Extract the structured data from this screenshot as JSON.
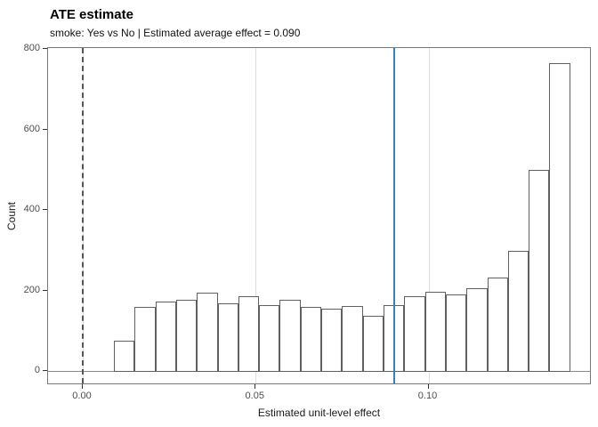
{
  "title": "ATE estimate",
  "subtitle": "smoke: Yes vs No | Estimated average effect = 0.090",
  "chart_data": {
    "type": "bar",
    "subtype": "histogram",
    "title": "ATE estimate",
    "subtitle": "smoke: Yes vs No | Estimated average effect = 0.090",
    "xlabel": "Estimated unit-level effect",
    "ylabel": "Count",
    "bin_start": 0.009,
    "bin_width": 0.006,
    "counts": [
      75,
      160,
      172,
      176,
      195,
      168,
      185,
      164,
      177,
      160,
      155,
      161,
      137,
      164,
      185,
      196,
      190,
      206,
      232,
      298,
      500,
      765
    ],
    "x_ticks": [
      0.0,
      0.05,
      0.1
    ],
    "x_tick_labels": [
      "0.00",
      "0.05",
      "0.10"
    ],
    "y_ticks": [
      0,
      200,
      400,
      600,
      800
    ],
    "y_tick_labels": [
      "0",
      "200",
      "400",
      "600",
      "800"
    ],
    "xlim": [
      -0.01,
      0.147
    ],
    "ylim": [
      -35,
      802
    ],
    "grid": "vertical-major-only",
    "legend": "none",
    "reference_lines": [
      {
        "style": "dashed",
        "x": 0.0,
        "color": "#555555",
        "name": "zero-effect-line"
      },
      {
        "style": "solid",
        "x": 0.09,
        "color": "#3182bd",
        "name": "estimated-average-effect-line"
      }
    ],
    "bar_fill": "#ffffff",
    "bar_outline": "#606060",
    "gridline_color": "#dedede",
    "baseline_color": "#8a8a8a"
  }
}
